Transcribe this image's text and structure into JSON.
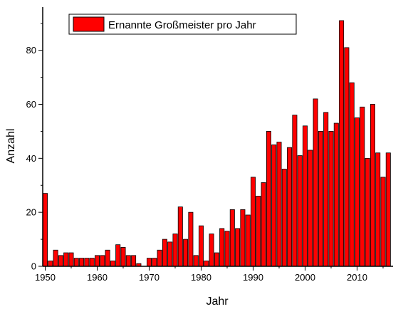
{
  "chart_data": {
    "type": "bar",
    "title": "",
    "xlabel": "Jahr",
    "ylabel": "Anzahl",
    "legend": "Ernannte Großmeister pro Jahr",
    "legend_position": "top-left",
    "grid": false,
    "xlim": [
      1950,
      2016
    ],
    "ylim": [
      0,
      96
    ],
    "x_ticks": [
      1950,
      1960,
      1970,
      1980,
      1990,
      2000,
      2010
    ],
    "y_ticks": [
      0,
      20,
      40,
      60,
      80
    ],
    "bar_color": "#ff0000",
    "series": [
      {
        "name": "Ernannte Großmeister pro Jahr",
        "x": [
          1950,
          1951,
          1952,
          1953,
          1954,
          1955,
          1956,
          1957,
          1958,
          1959,
          1960,
          1961,
          1962,
          1963,
          1964,
          1965,
          1966,
          1967,
          1968,
          1969,
          1970,
          1971,
          1972,
          1973,
          1974,
          1975,
          1976,
          1977,
          1978,
          1979,
          1980,
          1981,
          1982,
          1983,
          1984,
          1985,
          1986,
          1987,
          1988,
          1989,
          1990,
          1991,
          1992,
          1993,
          1994,
          1995,
          1996,
          1997,
          1998,
          1999,
          2000,
          2001,
          2002,
          2003,
          2004,
          2005,
          2006,
          2007,
          2008,
          2009,
          2010,
          2011,
          2012,
          2013,
          2014,
          2015,
          2016
        ],
        "values": [
          27,
          2,
          6,
          4,
          5,
          5,
          3,
          3,
          3,
          3,
          4,
          4,
          6,
          2,
          8,
          7,
          4,
          4,
          1,
          0,
          3,
          3,
          6,
          10,
          9,
          12,
          22,
          10,
          20,
          4,
          15,
          2,
          12,
          5,
          14,
          13,
          21,
          14,
          21,
          19,
          33,
          26,
          31,
          50,
          45,
          46,
          36,
          44,
          56,
          41,
          52,
          43,
          62,
          50,
          57,
          50,
          53,
          91,
          81,
          68,
          55,
          59,
          40,
          60,
          42,
          33,
          42
        ]
      }
    ]
  }
}
